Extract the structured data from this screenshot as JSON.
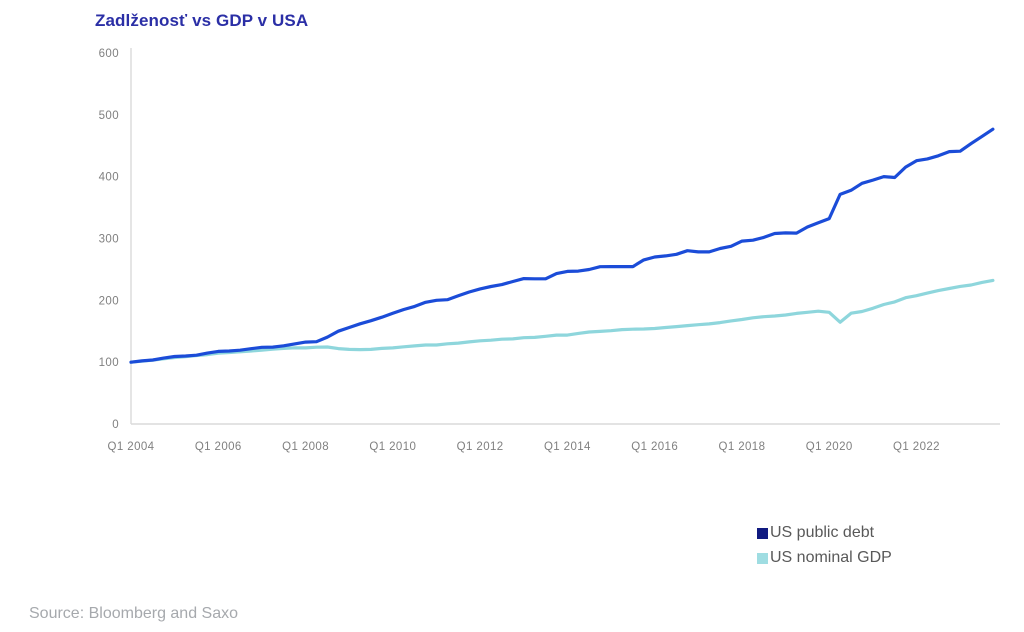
{
  "chart_data": {
    "type": "line",
    "title": "Zadlženosť vs GDP v USA",
    "title_color": "#2b2fa6",
    "xlabel": "",
    "ylabel": "",
    "ylim": [
      0,
      600
    ],
    "y_ticks": [
      0,
      100,
      200,
      300,
      400,
      500,
      600
    ],
    "x_tick_labels": [
      "Q1 2004",
      "Q1 2006",
      "Q1 2008",
      "Q1 2010",
      "Q1 2012",
      "Q1 2014",
      "Q1 2016",
      "Q1 2018",
      "Q1 2020",
      "Q1 2022"
    ],
    "x_tick_every_n_points": 8,
    "x_start": "Q1 2004",
    "x_end": "Q4 2023",
    "frequency": "quarterly",
    "index_base": "Q1 2004 = 100",
    "grid": false,
    "legend_position": "bottom-right",
    "axis_color": "#dadada",
    "tick_label_color": "#808080",
    "series": [
      {
        "name": "US public debt",
        "line_color": "#1b4cd8",
        "legend_color": "#101a80",
        "values": [
          100,
          102.0,
          103.5,
          106.6,
          109.1,
          110.0,
          111.2,
          114.6,
          117.4,
          118.1,
          119.4,
          121.7,
          124.1,
          124.4,
          126.4,
          129.5,
          132.4,
          133.1,
          140.5,
          150.1,
          156.1,
          162.0,
          167.0,
          172.7,
          179.1,
          185.1,
          190.2,
          196.8,
          200.1,
          201.1,
          207.4,
          213.5,
          218.5,
          222.4,
          225.4,
          230.4,
          235.2,
          234.8,
          234.8,
          243.3,
          246.8,
          247.3,
          249.9,
          254.4,
          254.6,
          254.6,
          254.6,
          265.4,
          270.1,
          271.8,
          274.5,
          280.2,
          278.4,
          278.3,
          283.9,
          287.4,
          295.8,
          297.3,
          301.8,
          308.1,
          309.0,
          308.8,
          318.6,
          325.4,
          332.2,
          371.4,
          378.0,
          389.2,
          394.5,
          400.1,
          398.7,
          415.4,
          425.9,
          428.7,
          433.8,
          440.6,
          441.2,
          453.4,
          465.2,
          476.8
        ]
      },
      {
        "name": "US nominal GDP",
        "line_color": "#8ed6dc",
        "legend_color": "#9fdde2",
        "values": [
          100,
          101.6,
          103.4,
          105.4,
          107.5,
          108.8,
          110.8,
          112.2,
          114.5,
          115.7,
          116.7,
          118.0,
          119.4,
          121.0,
          122.2,
          123.2,
          123.0,
          124.2,
          124.5,
          122.0,
          120.6,
          120.3,
          120.6,
          122.2,
          123.1,
          124.9,
          126.3,
          127.7,
          127.8,
          129.7,
          130.9,
          132.7,
          134.5,
          135.5,
          137.2,
          137.7,
          139.5,
          140.1,
          141.8,
          143.7,
          143.8,
          146.5,
          148.8,
          149.7,
          150.9,
          152.6,
          153.3,
          153.7,
          154.5,
          156.1,
          157.5,
          159.1,
          160.6,
          161.9,
          164.0,
          166.8,
          169.0,
          171.7,
          173.5,
          174.6,
          176.2,
          178.9,
          180.6,
          182.4,
          180.6,
          164.7,
          179.2,
          182.0,
          187.1,
          193.3,
          197.5,
          204.2,
          207.5,
          211.7,
          215.7,
          219.2,
          222.5,
          224.8,
          229.0,
          232.2
        ]
      }
    ]
  },
  "legend": {
    "text_color": "#595959"
  },
  "footer": {
    "source": "Source: Bloomberg and Saxo"
  }
}
